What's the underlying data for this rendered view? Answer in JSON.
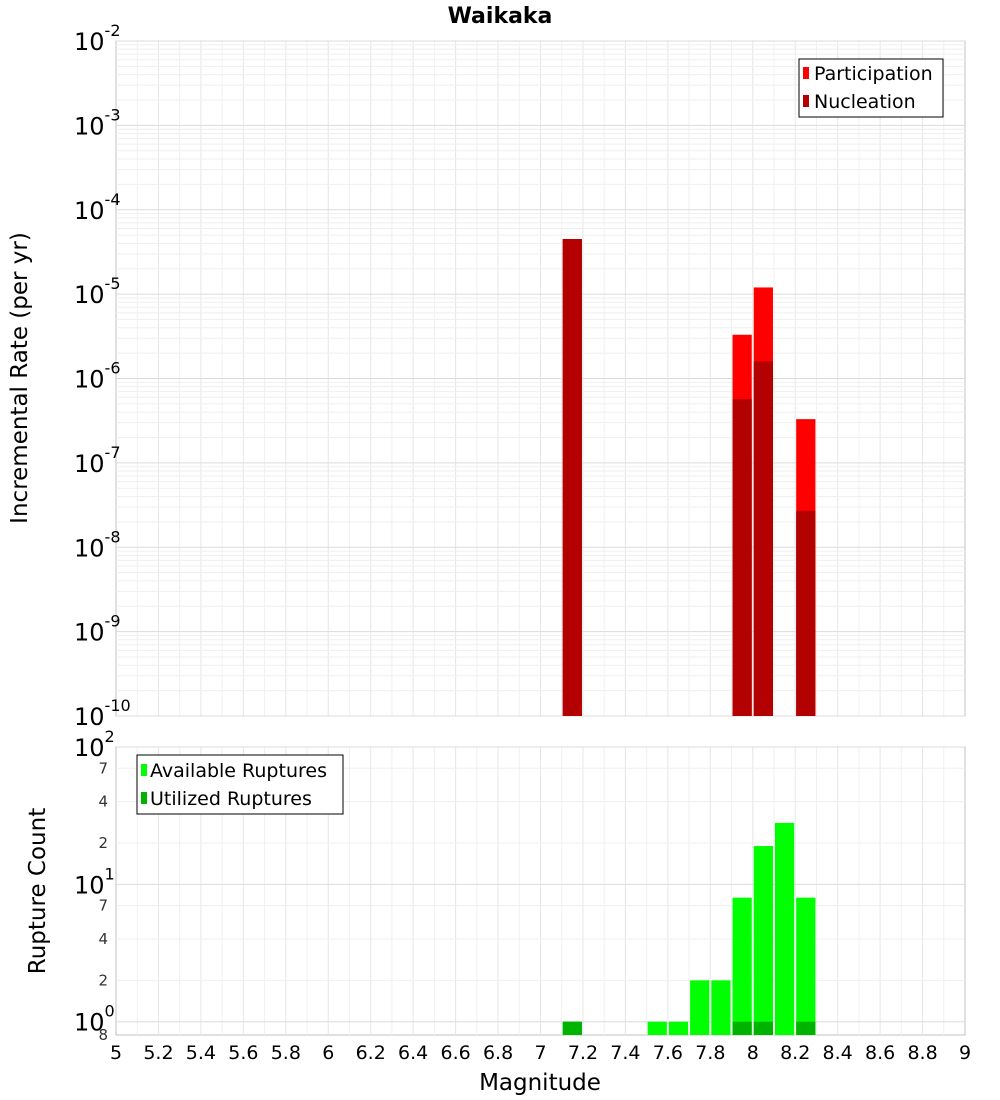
{
  "chart_data": [
    {
      "type": "bar",
      "title": "Waikaka",
      "xlabel": "Magnitude",
      "ylabel": "Incremental Rate (per yr)",
      "yscale": "log",
      "ylim": [
        1e-10,
        0.01
      ],
      "xlim": [
        5,
        9
      ],
      "grid": true,
      "legend_position": "top-right",
      "series": [
        {
          "name": "Participation",
          "color": "#ff0000",
          "points": [
            {
              "x": 7.15,
              "y": 4.5e-05
            },
            {
              "x": 7.95,
              "y": 3.3e-06
            },
            {
              "x": 8.05,
              "y": 1.2e-05
            },
            {
              "x": 8.25,
              "y": 3.3e-07
            }
          ]
        },
        {
          "name": "Nucleation",
          "color": "#b30000",
          "points": [
            {
              "x": 7.15,
              "y": 4.5e-05
            },
            {
              "x": 7.95,
              "y": 5.7e-07
            },
            {
              "x": 8.05,
              "y": 1.6e-06
            },
            {
              "x": 8.25,
              "y": 2.7e-08
            }
          ]
        }
      ],
      "y_ticks": [
        {
          "base": "10",
          "exp": "-10"
        },
        {
          "base": "10",
          "exp": "-9"
        },
        {
          "base": "10",
          "exp": "-8"
        },
        {
          "base": "10",
          "exp": "-7"
        },
        {
          "base": "10",
          "exp": "-6"
        },
        {
          "base": "10",
          "exp": "-5"
        },
        {
          "base": "10",
          "exp": "-4"
        },
        {
          "base": "10",
          "exp": "-3"
        },
        {
          "base": "10",
          "exp": "-2"
        }
      ]
    },
    {
      "type": "bar",
      "xlabel": "Magnitude",
      "ylabel": "Rupture Count",
      "yscale": "log",
      "ylim": [
        0.8,
        100
      ],
      "xlim": [
        5,
        9
      ],
      "grid": true,
      "legend_position": "top-left",
      "series": [
        {
          "name": "Available Ruptures",
          "color": "#00ff00",
          "points": [
            {
              "x": 7.15,
              "y": 1
            },
            {
              "x": 7.55,
              "y": 1
            },
            {
              "x": 7.65,
              "y": 1
            },
            {
              "x": 7.75,
              "y": 2
            },
            {
              "x": 7.85,
              "y": 2
            },
            {
              "x": 7.95,
              "y": 8
            },
            {
              "x": 8.05,
              "y": 19
            },
            {
              "x": 8.15,
              "y": 28
            },
            {
              "x": 8.25,
              "y": 8
            }
          ]
        },
        {
          "name": "Utilized Ruptures",
          "color": "#00b300",
          "points": [
            {
              "x": 7.15,
              "y": 1
            },
            {
              "x": 7.95,
              "y": 1
            },
            {
              "x": 8.05,
              "y": 1
            },
            {
              "x": 8.25,
              "y": 1
            }
          ]
        }
      ],
      "y_ticks": [
        {
          "base": "10",
          "exp": "0"
        },
        {
          "base": "10",
          "exp": "1"
        },
        {
          "base": "10",
          "exp": "2"
        }
      ],
      "y_minor_ticks": [
        {
          "value": 2,
          "label": "2"
        },
        {
          "value": 4,
          "label": "4"
        },
        {
          "value": 7,
          "label": "7"
        },
        {
          "value": 20,
          "label": "2"
        },
        {
          "value": 40,
          "label": "4"
        },
        {
          "value": 70,
          "label": "7"
        },
        {
          "value": 0.8,
          "label": "8"
        }
      ]
    }
  ],
  "x_ticks": [
    "5",
    "5.2",
    "5.4",
    "5.6",
    "5.8",
    "6",
    "6.2",
    "6.4",
    "6.6",
    "6.8",
    "7",
    "7.2",
    "7.4",
    "7.6",
    "7.8",
    "8",
    "8.2",
    "8.4",
    "8.6",
    "8.8",
    "9"
  ],
  "bar_width": 0.1
}
